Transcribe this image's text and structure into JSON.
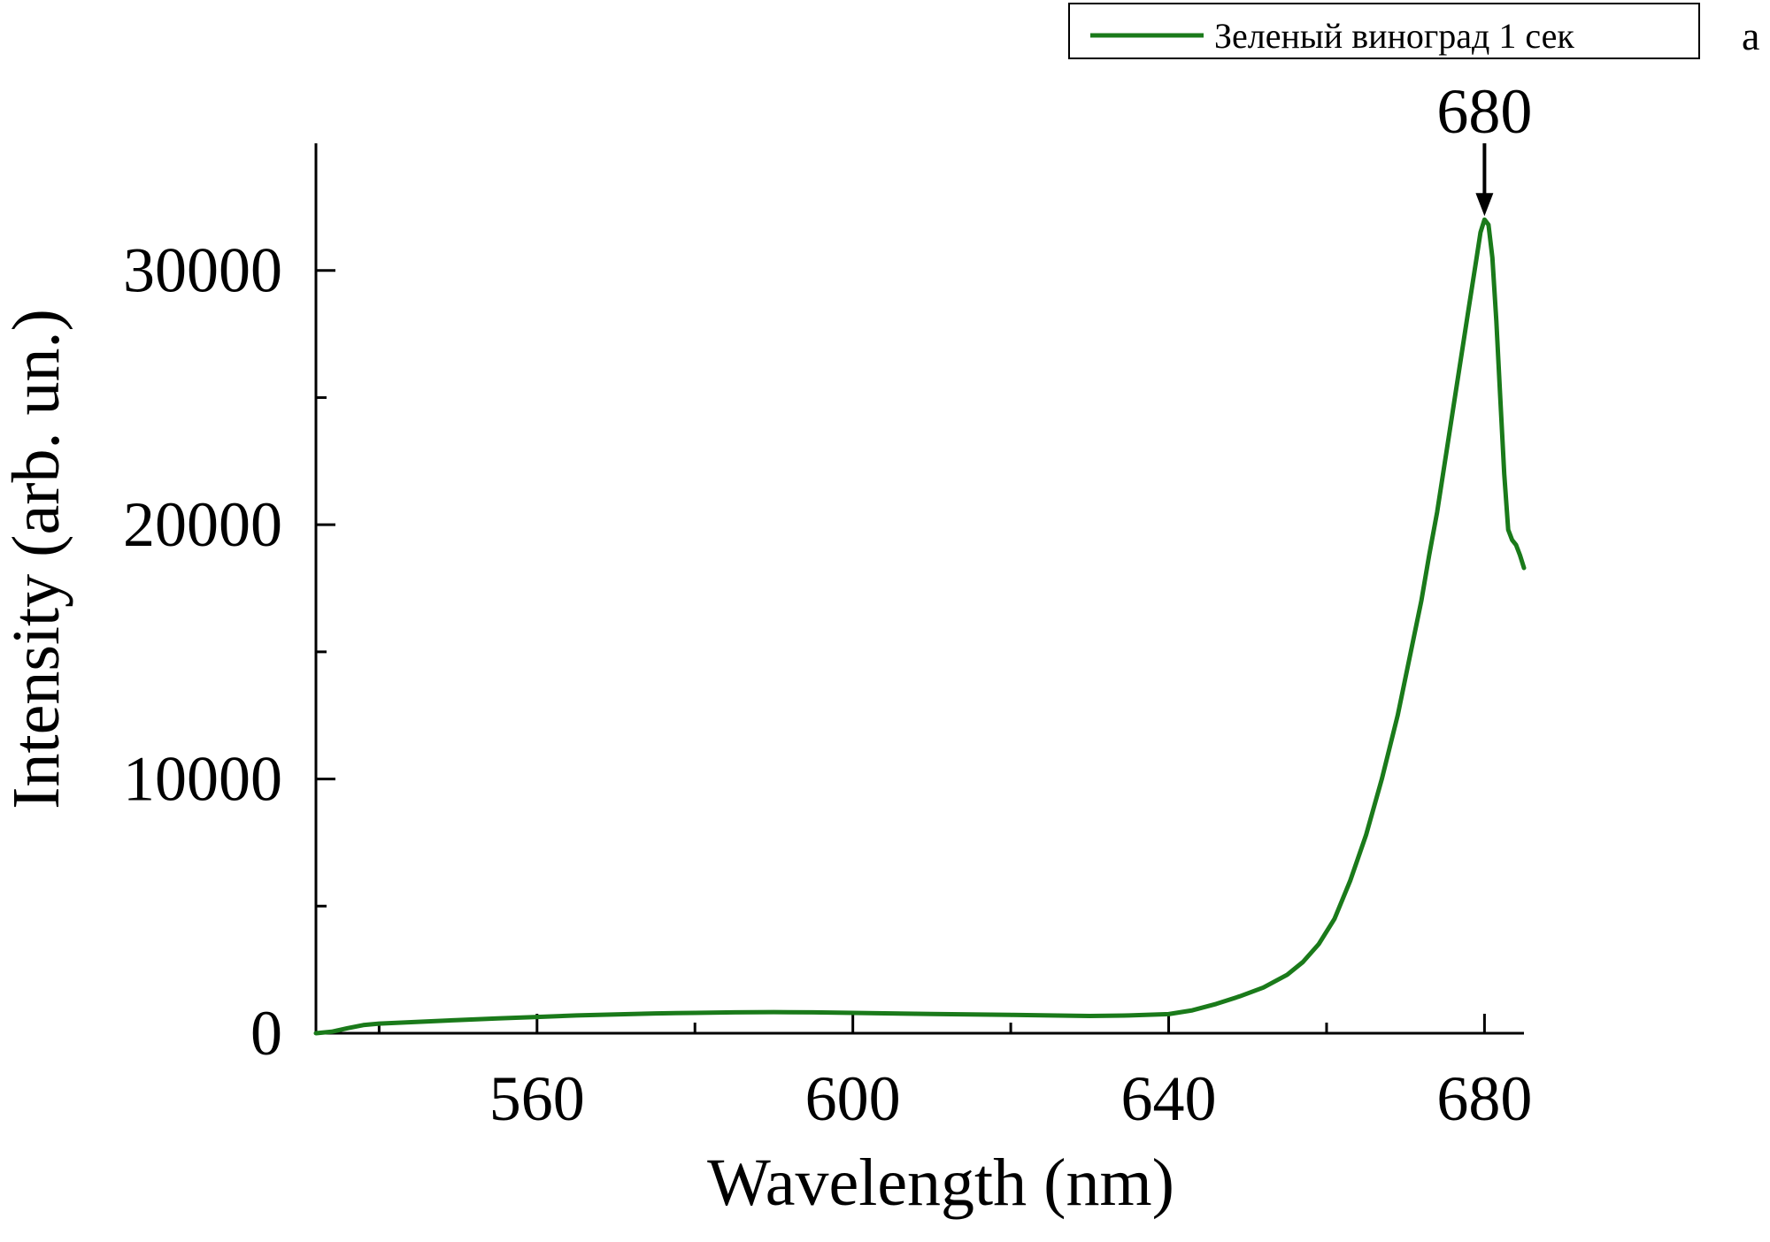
{
  "chart_data": {
    "type": "line",
    "xlabel": "Wavelength (nm)",
    "ylabel": "Intensity (arb. un.)",
    "xlim": [
      532,
      685
    ],
    "ylim": [
      0,
      35000
    ],
    "x_major_ticks": [
      560,
      600,
      640,
      680
    ],
    "x_minor_ticks": [
      540,
      580,
      620,
      660
    ],
    "y_major_ticks": [
      0,
      10000,
      20000,
      30000
    ],
    "y_minor_ticks": [
      5000,
      15000,
      25000
    ],
    "x_tick_labels": [
      "560",
      "600",
      "640",
      "680"
    ],
    "y_tick_labels": [
      "0",
      "10000",
      "20000",
      "30000"
    ],
    "grid": false,
    "legend_position": "top-right",
    "panel_label": "a",
    "annotation": {
      "text": "680",
      "x": 680,
      "y": 32000
    },
    "series": [
      {
        "name": "Зеленый виноград 1 сек",
        "color": "#1a7a1a",
        "x": [
          532,
          534,
          536,
          538,
          540,
          545,
          550,
          555,
          560,
          565,
          570,
          575,
          580,
          585,
          590,
          595,
          600,
          605,
          610,
          615,
          620,
          625,
          630,
          635,
          640,
          643,
          646,
          649,
          652,
          655,
          657,
          659,
          661,
          663,
          665,
          667,
          669,
          671,
          672,
          673,
          674,
          675,
          676,
          677,
          678,
          679,
          679.5,
          680,
          680.5,
          681,
          681.5,
          682,
          682.5,
          683,
          683.5,
          684,
          684.5,
          685
        ],
        "y": [
          0,
          60,
          200,
          320,
          380,
          450,
          520,
          580,
          640,
          700,
          740,
          780,
          800,
          820,
          830,
          820,
          800,
          780,
          760,
          740,
          720,
          700,
          680,
          700,
          750,
          900,
          1150,
          1450,
          1800,
          2300,
          2800,
          3500,
          4500,
          6000,
          7800,
          10000,
          12500,
          15500,
          17000,
          18800,
          20500,
          22500,
          24500,
          26500,
          28500,
          30500,
          31500,
          32000,
          31800,
          30500,
          28000,
          25000,
          22000,
          19800,
          19400,
          19200,
          18800,
          18300
        ]
      }
    ]
  }
}
